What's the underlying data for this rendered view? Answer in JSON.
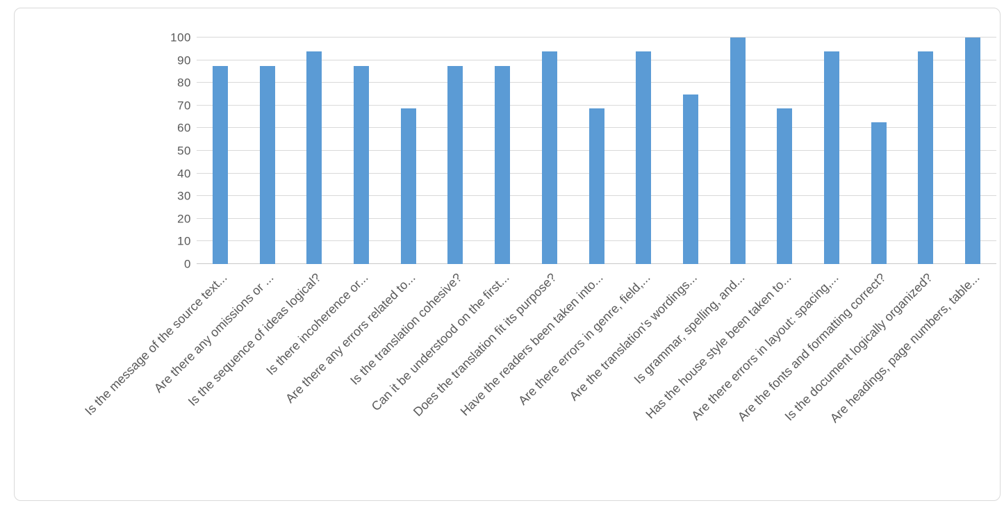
{
  "chart_data": {
    "type": "bar",
    "title": "",
    "xlabel": "",
    "ylabel": "",
    "categories": [
      "Is the message of the source text...",
      "Are there any omissions or ...",
      "Is the sequence of ideas logical?",
      "Is there incoherence or...",
      "Are there any errors related to...",
      "Is the translation cohesive?",
      "Can it be understood on the first...",
      "Does the translation fit its purpose?",
      "Have the readers been taken into...",
      "Are there errors in genre, field,...",
      "Are the translation's wordings...",
      "Is grammar, spelling, and...",
      "Has the house style been taken to...",
      "Are there errors in layout: spacing,...",
      "Are the fonts and formatting correct?",
      "Is the document logically organized?",
      "Are headings, page numbers, table..."
    ],
    "values": [
      87.5,
      87.5,
      93.75,
      87.5,
      68.75,
      87.5,
      87.5,
      93.75,
      68.75,
      93.75,
      75,
      100,
      68.75,
      93.75,
      62.5,
      93.75,
      100
    ],
    "ylim": [
      0,
      100
    ],
    "yticks": [
      0,
      10,
      20,
      30,
      40,
      50,
      60,
      70,
      80,
      90,
      100
    ],
    "grid": "horizontal",
    "legend": "none",
    "label_rotation_deg": 45,
    "colors": {
      "bar": "#5b9bd5",
      "gridline": "#d9d9d9",
      "axis_line": "#c9c9c9",
      "text": "#595959",
      "frame_border": "#d9d9d9",
      "background": "#ffffff"
    }
  }
}
